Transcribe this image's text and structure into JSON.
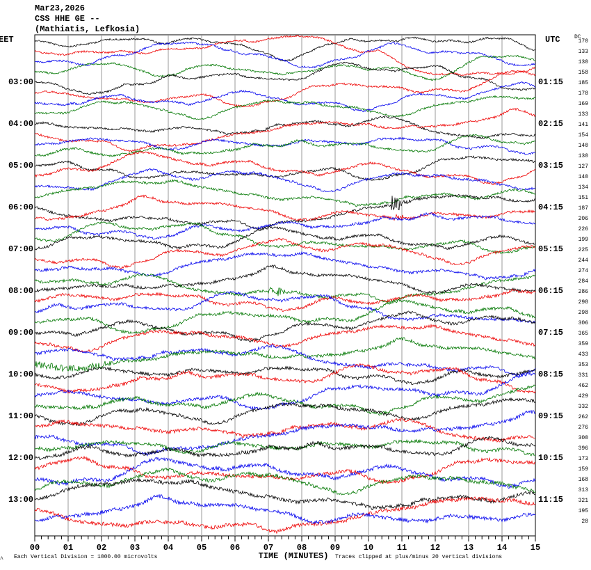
{
  "header": {
    "date": "Mar23,2026",
    "station": "CSS HHE GE --",
    "location": "(Mathiatis, Lefkosia)"
  },
  "left_zone": "EET",
  "right_zone": "UTC",
  "dc_label": "DC",
  "eet_times": [
    "03:00",
    "04:00",
    "05:00",
    "06:00",
    "07:00",
    "08:00",
    "09:00",
    "10:00",
    "11:00",
    "12:00",
    "13:00"
  ],
  "utc_times": [
    "01:15",
    "02:15",
    "03:15",
    "04:15",
    "05:15",
    "06:15",
    "07:15",
    "08:15",
    "09:15",
    "10:15",
    "11:15"
  ],
  "dc_values": [
    170,
    133,
    130,
    158,
    185,
    178,
    169,
    133,
    141,
    154,
    140,
    130,
    127,
    140,
    134,
    151,
    187,
    206,
    226,
    199,
    225,
    244,
    274,
    284,
    286,
    298,
    298,
    306,
    365,
    359,
    433,
    353,
    331,
    462,
    429,
    332,
    262,
    276,
    300,
    396,
    173,
    159,
    168,
    313,
    321,
    195,
    28
  ],
  "x_ticks": [
    "00",
    "01",
    "02",
    "03",
    "04",
    "05",
    "06",
    "07",
    "08",
    "09",
    "10",
    "11",
    "12",
    "13",
    "14",
    "15"
  ],
  "x_axis_label": "TIME (MINUTES)",
  "footer_left": "Each Vertical Division = 1000.00 microvolts",
  "footer_right": "Traces clipped at plus/minus 20 vertical divisions"
}
